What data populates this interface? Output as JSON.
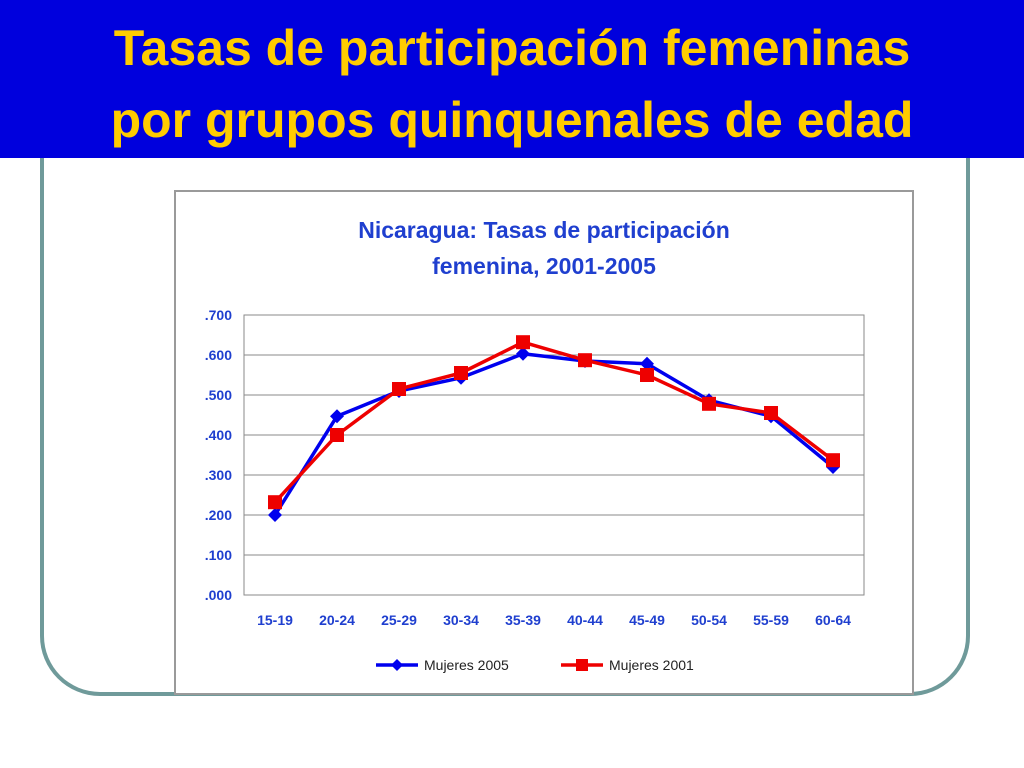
{
  "slide": {
    "title_line_1": "Tasas de participación femeninas",
    "title_line_2": "por grupos quinquenales de edad",
    "colors": {
      "header_bg": "#0000dd",
      "title_text": "#ffcc00",
      "frame": "#6f9a9a"
    }
  },
  "chart_data": {
    "type": "line",
    "title_line_1": "Nicaragua: Tasas de participación",
    "title_line_2": "femenina, 2001-2005",
    "categories": [
      "15-19",
      "20-24",
      "25-29",
      "30-34",
      "35-39",
      "40-44",
      "45-49",
      "50-54",
      "55-59",
      "60-64"
    ],
    "y_ticks": [
      ".000",
      ".100",
      ".200",
      ".300",
      ".400",
      ".500",
      ".600",
      ".700"
    ],
    "ylim": [
      0,
      0.7
    ],
    "grid": true,
    "legend_position": "bottom",
    "series": [
      {
        "name": "Mujeres 2005",
        "color": "#0000ee",
        "marker": "diamond",
        "values": [
          0.2,
          0.447,
          0.51,
          0.543,
          0.603,
          0.585,
          0.578,
          0.487,
          0.447,
          0.32
        ]
      },
      {
        "name": "Mujeres 2001",
        "color": "#ee0000",
        "marker": "square",
        "values": [
          0.232,
          0.4,
          0.515,
          0.555,
          0.632,
          0.587,
          0.55,
          0.478,
          0.455,
          0.337
        ]
      }
    ]
  }
}
